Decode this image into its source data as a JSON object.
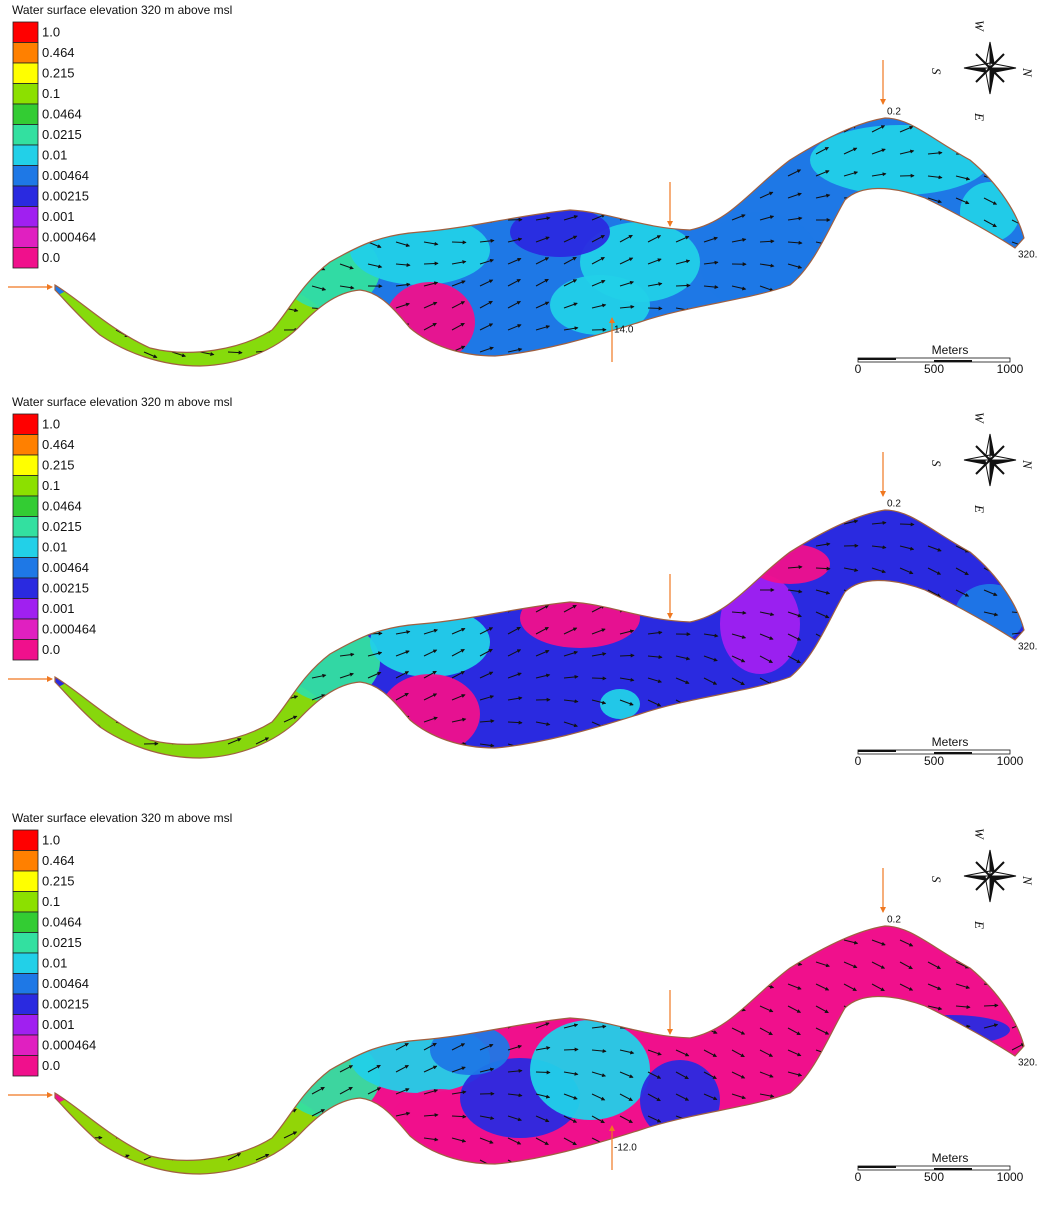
{
  "panels": [
    {
      "title": "Water surface elevation 320 m above msl",
      "legend": [
        {
          "label": "1.0",
          "color": "#ff0000"
        },
        {
          "label": "0.464",
          "color": "#ff8000"
        },
        {
          "label": "0.215",
          "color": "#ffff00"
        },
        {
          "label": "0.1",
          "color": "#8ce000"
        },
        {
          "label": "0.0464",
          "color": "#33cc33"
        },
        {
          "label": "0.0215",
          "color": "#33e0a0"
        },
        {
          "label": "0.01",
          "color": "#22d0e8"
        },
        {
          "label": "0.00464",
          "color": "#1e78e6"
        },
        {
          "label": "0.00215",
          "color": "#2a2ae0"
        },
        {
          "label": "0.001",
          "color": "#a020f0"
        },
        {
          "label": "0.000464",
          "color": "#e020c0"
        },
        {
          "label": "0.0",
          "color": "#f0108c"
        }
      ],
      "compass": {
        "w": "W",
        "s": "S",
        "n": "N",
        "e": "E"
      },
      "scale": {
        "title": "Meters",
        "ticks": [
          "0",
          "500",
          "1000"
        ]
      },
      "inflow_labels": [
        "14.0",
        "0.2",
        "320."
      ]
    },
    {
      "title": "Water surface elevation 320 m above msl",
      "legend": [
        {
          "label": "1.0",
          "color": "#ff0000"
        },
        {
          "label": "0.464",
          "color": "#ff8000"
        },
        {
          "label": "0.215",
          "color": "#ffff00"
        },
        {
          "label": "0.1",
          "color": "#8ce000"
        },
        {
          "label": "0.0464",
          "color": "#33cc33"
        },
        {
          "label": "0.0215",
          "color": "#33e0a0"
        },
        {
          "label": "0.01",
          "color": "#22d0e8"
        },
        {
          "label": "0.00464",
          "color": "#1e78e6"
        },
        {
          "label": "0.00215",
          "color": "#2a2ae0"
        },
        {
          "label": "0.001",
          "color": "#a020f0"
        },
        {
          "label": "0.000464",
          "color": "#e020c0"
        },
        {
          "label": "0.0",
          "color": "#f0108c"
        }
      ],
      "compass": {
        "w": "W",
        "s": "S",
        "n": "N",
        "e": "E"
      },
      "scale": {
        "title": "Meters",
        "ticks": [
          "0",
          "500",
          "1000"
        ]
      },
      "inflow_labels": [
        "0.2",
        "320."
      ]
    },
    {
      "title": "Water surface elevation 320 m above msl",
      "legend": [
        {
          "label": "1.0",
          "color": "#ff0000"
        },
        {
          "label": "0.464",
          "color": "#ff8000"
        },
        {
          "label": "0.215",
          "color": "#ffff00"
        },
        {
          "label": "0.1",
          "color": "#8ce000"
        },
        {
          "label": "0.0464",
          "color": "#33cc33"
        },
        {
          "label": "0.0215",
          "color": "#33e0a0"
        },
        {
          "label": "0.01",
          "color": "#22d0e8"
        },
        {
          "label": "0.00464",
          "color": "#1e78e6"
        },
        {
          "label": "0.00215",
          "color": "#2a2ae0"
        },
        {
          "label": "0.001",
          "color": "#a020f0"
        },
        {
          "label": "0.000464",
          "color": "#e020c0"
        },
        {
          "label": "0.0",
          "color": "#f0108c"
        }
      ],
      "compass": {
        "w": "W",
        "s": "S",
        "n": "N",
        "e": "E"
      },
      "scale": {
        "title": "Meters",
        "ticks": [
          "0",
          "500",
          "1000"
        ]
      },
      "inflow_labels": [
        "-12.0",
        "0.2",
        "320."
      ]
    }
  ]
}
